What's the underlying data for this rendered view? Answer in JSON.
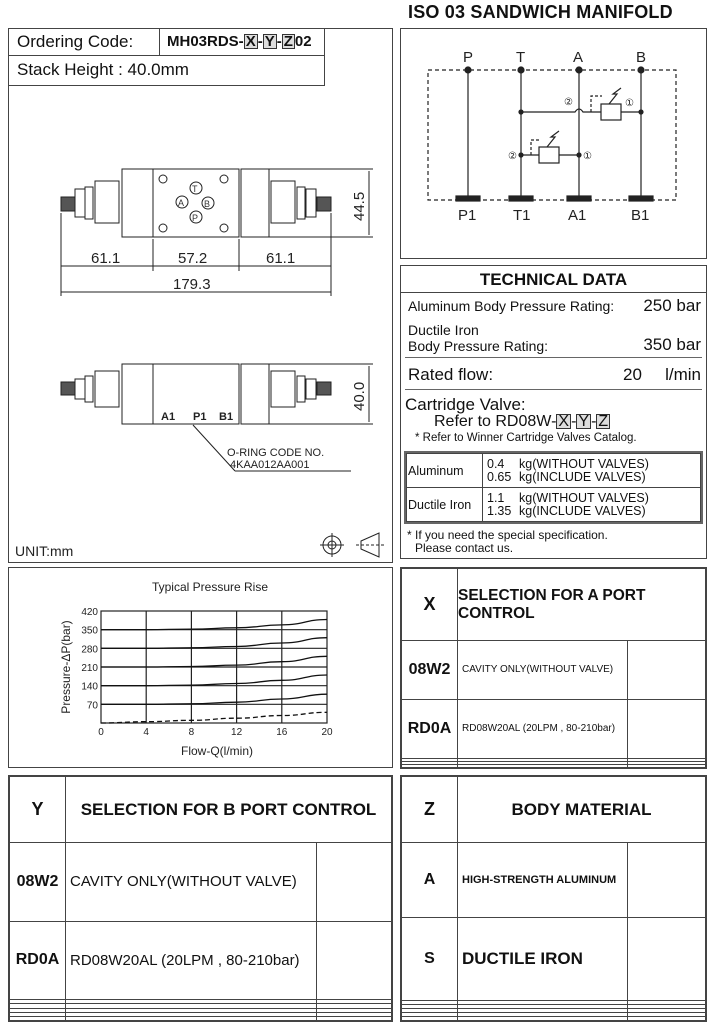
{
  "title": "ISO 03 SANDWICH MANIFOLD",
  "ordering": {
    "label": "Ordering Code:",
    "code_prefix": "MH03RDS-",
    "x": "X",
    "y": "Y",
    "z": "Z",
    "code_suffix": "02",
    "stack_height": "Stack Height : 40.0mm"
  },
  "drawing": {
    "dim_left": "61.1",
    "dim_mid": "57.2",
    "dim_right": "61.1",
    "dim_total": "179.3",
    "dim_height_top": "44.5",
    "dim_height_side": "40.0",
    "ports_top": [
      "T",
      "A",
      "B",
      "P"
    ],
    "ports_side": [
      "A1",
      "P1",
      "B1"
    ],
    "oring_label": "O-RING CODE NO.",
    "oring_code": "4KAA012AA001",
    "unit": "UNIT:mm"
  },
  "schematic": {
    "top_ports": [
      "P",
      "T",
      "A",
      "B"
    ],
    "bottom_ports": [
      "P1",
      "T1",
      "A1",
      "B1"
    ],
    "port_markers": [
      "②",
      "①"
    ]
  },
  "tech": {
    "header": "TECHNICAL DATA",
    "al_label": "Aluminum Body Pressure Rating:",
    "al_value": "250 bar",
    "di_label1": "Ductile Iron",
    "di_label2": "Body Pressure Rating:",
    "di_value": "350 bar",
    "flow_label": "Rated flow:",
    "flow_value": "20",
    "flow_unit": "l/min",
    "cart_label": "Cartridge Valve:",
    "cart_ref": "Refer to RD08W-",
    "cart_x": "X",
    "cart_y": "Y",
    "cart_z": "Z",
    "cart_note": "* Refer to Winner Cartridge Valves Catalog.",
    "weights": [
      {
        "material": "Aluminum",
        "w1": "0.4",
        "t1": "kg(WITHOUT VALVES)",
        "w2": "0.65",
        "t2": "kg(INCLUDE VALVES)"
      },
      {
        "material": "Ductile Iron",
        "w1": "1.1",
        "t1": "kg(WITHOUT VALVES)",
        "w2": "1.35",
        "t2": "kg(INCLUDE VALVES)"
      }
    ],
    "special_note1": "* If you need the special specification.",
    "special_note2": "Please contact us."
  },
  "chart_data": {
    "type": "line",
    "title": "Typical Pressure Rise",
    "xlabel": "Flow-Q(l/min)",
    "ylabel": "Pressure-ΔP(bar)",
    "xlim": [
      0,
      20
    ],
    "ylim": [
      0,
      420
    ],
    "xticks": [
      "0",
      "4",
      "8",
      "12",
      "16",
      "20"
    ],
    "yticks": [
      "70",
      "140",
      "210",
      "280",
      "350",
      "420"
    ],
    "grid": true,
    "x": [
      0,
      4,
      8,
      12,
      16,
      20
    ],
    "series": [
      {
        "values": [
          350,
          350,
          352,
          357,
          368,
          388
        ]
      },
      {
        "values": [
          280,
          280,
          282,
          287,
          300,
          320
        ]
      },
      {
        "values": [
          210,
          210,
          212,
          217,
          230,
          250
        ]
      },
      {
        "values": [
          140,
          140,
          142,
          148,
          160,
          180
        ]
      },
      {
        "values": [
          70,
          70,
          72,
          78,
          90,
          108
        ]
      },
      {
        "values": [
          0,
          5,
          10,
          18,
          28,
          40
        ],
        "style": "dashed"
      }
    ]
  },
  "x_table": {
    "key": "X",
    "header": "SELECTION FOR A PORT CONTROL",
    "rows": [
      {
        "code": "08W2",
        "desc": "CAVITY ONLY(WITHOUT VALVE)"
      },
      {
        "code": "RD0A",
        "desc": "RD08W20AL (20LPM , 80-210bar)"
      },
      {
        "code": "",
        "desc": ""
      },
      {
        "code": "",
        "desc": ""
      },
      {
        "code": "",
        "desc": ""
      }
    ]
  },
  "y_table": {
    "key": "Y",
    "header": "SELECTION FOR B PORT CONTROL",
    "rows": [
      {
        "code": "08W2",
        "desc": "CAVITY ONLY(WITHOUT VALVE)"
      },
      {
        "code": "RD0A",
        "desc": "RD08W20AL (20LPM , 80-210bar)"
      },
      {
        "code": "",
        "desc": ""
      },
      {
        "code": "",
        "desc": ""
      },
      {
        "code": "",
        "desc": ""
      },
      {
        "code": "",
        "desc": ""
      },
      {
        "code": "",
        "desc": ""
      }
    ]
  },
  "z_table": {
    "key": "Z",
    "header": "BODY MATERIAL",
    "rows": [
      {
        "code": "A",
        "desc": "HIGH-STRENGTH ALUMINUM"
      },
      {
        "code": "S",
        "desc": "DUCTILE IRON"
      },
      {
        "code": "",
        "desc": ""
      },
      {
        "code": "",
        "desc": ""
      },
      {
        "code": "",
        "desc": ""
      },
      {
        "code": "",
        "desc": ""
      },
      {
        "code": "",
        "desc": ""
      }
    ]
  }
}
